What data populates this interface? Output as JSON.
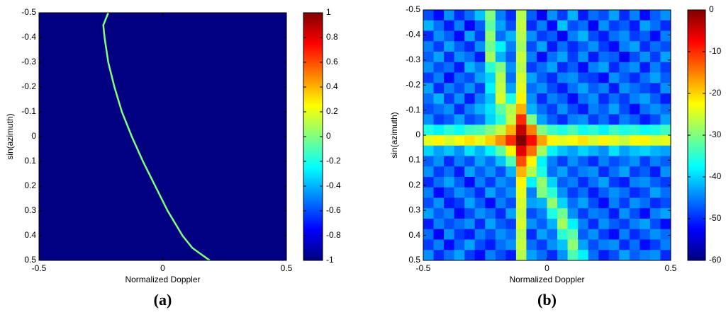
{
  "chart_data": [
    {
      "type": "heatmap",
      "caption": "(a)",
      "xlabel": "Normalized Doppler",
      "ylabel": "sin(azimuth)",
      "xlim": [
        -0.5,
        0.5
      ],
      "xticks": [
        -0.5,
        0,
        0.5
      ],
      "ylim": [
        -0.5,
        0.5
      ],
      "yticks": [
        -0.5,
        -0.4,
        -0.3,
        -0.2,
        -0.1,
        0,
        0.1,
        0.2,
        0.3,
        0.4,
        0.5
      ],
      "y_direction": "reverse",
      "clim": [
        -1,
        1
      ],
      "cticks": [
        -1,
        -0.8,
        -0.6,
        -0.4,
        -0.2,
        0,
        0.2,
        0.4,
        0.6,
        0.8,
        1
      ],
      "colormap": "jet",
      "fill_value": -1,
      "ridge": {
        "value": 0,
        "x": [
          -0.22,
          -0.24,
          -0.235,
          -0.22,
          -0.195,
          -0.165,
          -0.125,
          -0.08,
          -0.03,
          0.02,
          0.08,
          0.12,
          0.19
        ],
        "y": [
          -0.5,
          -0.45,
          -0.4,
          -0.3,
          -0.2,
          -0.1,
          0,
          0.1,
          0.2,
          0.3,
          0.4,
          0.45,
          0.5
        ]
      }
    },
    {
      "type": "heatmap",
      "caption": "(b)",
      "xlabel": "Normalized Doppler",
      "ylabel": "sin(azimuth)",
      "xlim": [
        -0.5,
        0.5
      ],
      "xticks": [
        -0.5,
        0,
        0.5
      ],
      "ylim": [
        -0.5,
        0.5
      ],
      "yticks": [
        -0.5,
        -0.4,
        -0.3,
        -0.2,
        -0.1,
        0,
        0.1,
        0.2,
        0.3,
        0.4,
        0.5
      ],
      "y_direction": "reverse",
      "clim": [
        -60,
        0
      ],
      "cticks": [
        -60,
        -50,
        -40,
        -30,
        -20,
        -10,
        0
      ],
      "colormap": "jet",
      "z": [
        [
          -48,
          -52,
          -44,
          -50,
          -46,
          -41,
          -30,
          -45,
          -50,
          -27,
          -47,
          -53,
          -44,
          -49,
          -42,
          -51,
          -46,
          -48,
          -43,
          -50,
          -45,
          -52,
          -47,
          -44
        ],
        [
          -42,
          -46,
          -51,
          -45,
          -53,
          -47,
          -32,
          -43,
          -48,
          -26,
          -50,
          -45,
          -52,
          -41,
          -48,
          -46,
          -53,
          -44,
          -49,
          -47,
          -51,
          -43,
          -46,
          -50
        ],
        [
          -50,
          -44,
          -47,
          -52,
          -43,
          -49,
          -29,
          -46,
          -42,
          -27,
          -44,
          -49,
          -47,
          -53,
          -45,
          -42,
          -48,
          -51,
          -46,
          -44,
          -49,
          -47,
          -52,
          -45
        ],
        [
          -45,
          -49,
          -43,
          -47,
          -50,
          -44,
          -31,
          -38,
          -45,
          -28,
          -48,
          -43,
          -51,
          -46,
          -50,
          -47,
          -44,
          -49,
          -52,
          -45,
          -43,
          -50,
          -46,
          -48
        ],
        [
          -47,
          -43,
          -50,
          -44,
          -46,
          -51,
          -28,
          -42,
          -47,
          -26,
          -45,
          -52,
          -46,
          -43,
          -49,
          -44,
          -51,
          -46,
          -47,
          -53,
          -48,
          -44,
          -49,
          -43
        ],
        [
          -44,
          -48,
          -46,
          -51,
          -42,
          -45,
          -35,
          -30,
          -44,
          -27,
          -49,
          -46,
          -43,
          -50,
          -47,
          -52,
          -45,
          -43,
          -50,
          -46,
          -44,
          -51,
          -45,
          -49
        ],
        [
          -49,
          -45,
          -52,
          -46,
          -48,
          -43,
          -40,
          -27,
          -46,
          -25,
          -43,
          -47,
          -50,
          -45,
          -44,
          -48,
          -49,
          -52,
          -44,
          -47,
          -50,
          -46,
          -43,
          -47
        ],
        [
          -43,
          -50,
          -45,
          -48,
          -44,
          -49,
          -38,
          -26,
          -43,
          -24,
          -46,
          -44,
          -48,
          -51,
          -46,
          -43,
          -47,
          -45,
          -51,
          -44,
          -46,
          -48,
          -50,
          -44
        ],
        [
          -46,
          -42,
          -49,
          -44,
          -51,
          -45,
          -41,
          -25,
          -36,
          -22,
          -44,
          -50,
          -45,
          -47,
          -52,
          -46,
          -44,
          -50,
          -46,
          -49,
          -45,
          -43,
          -47,
          -51
        ],
        [
          -48,
          -46,
          -44,
          -50,
          -45,
          -42,
          -39,
          -32,
          -27,
          -18,
          -42,
          -46,
          -49,
          -44,
          -48,
          -51,
          -45,
          -47,
          -43,
          -48,
          -52,
          -46,
          -44,
          -46
        ],
        [
          -44,
          -49,
          -47,
          -43,
          -48,
          -46,
          -40,
          -35,
          -26,
          -10,
          -30,
          -43,
          -47,
          -50,
          -45,
          -44,
          -49,
          -46,
          -50,
          -45,
          -47,
          -51,
          -48,
          -43
        ],
        [
          -36,
          -38,
          -35,
          -37,
          -34,
          -33,
          -30,
          -26,
          -18,
          -4,
          -15,
          -30,
          -34,
          -36,
          -33,
          -37,
          -35,
          -38,
          -34,
          -36,
          -35,
          -37,
          -36,
          -34
        ],
        [
          -24,
          -22,
          -25,
          -23,
          -21,
          -24,
          -20,
          -16,
          -10,
          0,
          -8,
          -17,
          -22,
          -24,
          -23,
          -21,
          -25,
          -22,
          -24,
          -26,
          -23,
          -22,
          -25,
          -24
        ],
        [
          -40,
          -43,
          -41,
          -44,
          -39,
          -42,
          -38,
          -32,
          -22,
          -6,
          -14,
          -28,
          -38,
          -41,
          -43,
          -40,
          -42,
          -44,
          -39,
          -43,
          -41,
          -40,
          -42,
          -43
        ],
        [
          -47,
          -44,
          -50,
          -45,
          -48,
          -43,
          -46,
          -41,
          -33,
          -12,
          -22,
          -38,
          -45,
          -49,
          -44,
          -47,
          -50,
          -45,
          -48,
          -46,
          -44,
          -49,
          -45,
          -47
        ],
        [
          -44,
          -49,
          -46,
          -51,
          -43,
          -47,
          -44,
          -48,
          -42,
          -18,
          -27,
          -36,
          -46,
          -43,
          -48,
          -45,
          -44,
          -50,
          -46,
          -43,
          -49,
          -47,
          -51,
          -44
        ],
        [
          -50,
          -46,
          -43,
          -47,
          -52,
          -45,
          -49,
          -44,
          -46,
          -22,
          -38,
          -29,
          -40,
          -47,
          -45,
          -50,
          -46,
          -43,
          -49,
          -51,
          -45,
          -44,
          -47,
          -49
        ],
        [
          -45,
          -52,
          -48,
          -44,
          -46,
          -50,
          -43,
          -47,
          -44,
          -24,
          -45,
          -30,
          -35,
          -44,
          -49,
          -46,
          -51,
          -47,
          -44,
          -46,
          -50,
          -48,
          -43,
          -46
        ],
        [
          -48,
          -44,
          -51,
          -49,
          -43,
          -47,
          -52,
          -45,
          -48,
          -25,
          -43,
          -42,
          -29,
          -40,
          -46,
          -43,
          -48,
          -52,
          -45,
          -49,
          -44,
          -46,
          -50,
          -48
        ],
        [
          -43,
          -47,
          -45,
          -52,
          -48,
          -44,
          -46,
          -50,
          -43,
          -26,
          -48,
          -45,
          -36,
          -31,
          -44,
          -49,
          -45,
          -46,
          -51,
          -44,
          -48,
          -52,
          -45,
          -43
        ],
        [
          -51,
          -45,
          -48,
          -46,
          -44,
          -50,
          -43,
          -47,
          -49,
          -25,
          -44,
          -47,
          -42,
          -28,
          -38,
          -45,
          -50,
          -44,
          -47,
          -49,
          -45,
          -43,
          -48,
          -52
        ],
        [
          -46,
          -53,
          -44,
          -49,
          -51,
          -45,
          -48,
          -44,
          -46,
          -27,
          -50,
          -43,
          -46,
          -35,
          -32,
          -47,
          -44,
          -49,
          -52,
          -45,
          -50,
          -47,
          -44,
          -46
        ],
        [
          -49,
          -45,
          -52,
          -47,
          -43,
          -48,
          -51,
          -46,
          -44,
          -26,
          -46,
          -49,
          -44,
          -41,
          -29,
          -43,
          -48,
          -45,
          -44,
          -50,
          -46,
          -52,
          -49,
          -45
        ],
        [
          -44,
          -50,
          -46,
          -43,
          -49,
          -52,
          -45,
          -48,
          -51,
          -27,
          -43,
          -46,
          -50,
          -44,
          -33,
          -38,
          -46,
          -51,
          -48,
          -43,
          -47,
          -45,
          -44,
          -50
        ]
      ]
    }
  ]
}
